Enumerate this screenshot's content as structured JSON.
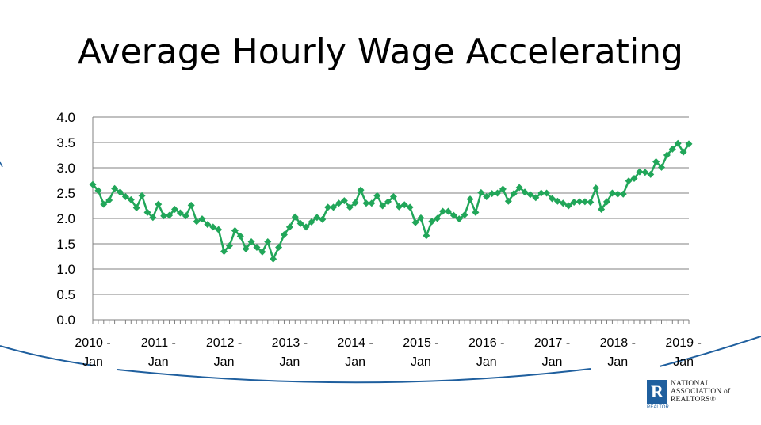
{
  "slide": {
    "title": "Average Hourly Wage Accelerating"
  },
  "logo": {
    "mark": "R",
    "sub": "REALTOR",
    "lines": [
      "NATIONAL",
      "ASSOCIATION of",
      "REALTORS®"
    ]
  },
  "colors": {
    "series": "#21a659",
    "grid": "#808080",
    "curve": "#1f5f9e"
  },
  "chart_data": {
    "type": "line",
    "title": "Average Hourly Wage Accelerating",
    "xlabel": "",
    "ylabel": "",
    "ylim": [
      0,
      4.0
    ],
    "yticks": [
      "0.0",
      "0.5",
      "1.0",
      "1.5",
      "2.0",
      "2.5",
      "3.0",
      "3.5",
      "4.0"
    ],
    "xtick_labels": [
      [
        "2010 -",
        "Jan"
      ],
      [
        "2011 -",
        "Jan"
      ],
      [
        "2012 -",
        "Jan"
      ],
      [
        "2013 -",
        "Jan"
      ],
      [
        "2014 -",
        "Jan"
      ],
      [
        "2015 -",
        "Jan"
      ],
      [
        "2016 -",
        "Jan"
      ],
      [
        "2017 -",
        "Jan"
      ],
      [
        "2018 -",
        "Jan"
      ],
      [
        "2019 -",
        "Jan"
      ]
    ],
    "grid": true,
    "legend": "none",
    "marker": "diamond",
    "start": "2010-01",
    "series": [
      {
        "values": [
          2.67,
          2.55,
          2.28,
          2.36,
          2.59,
          2.52,
          2.43,
          2.37,
          2.21,
          2.45,
          2.12,
          2.02,
          2.28,
          2.05,
          2.06,
          2.18,
          2.11,
          2.05,
          2.26,
          1.94,
          1.99,
          1.88,
          1.83,
          1.78,
          1.35,
          1.46,
          1.76,
          1.65,
          1.4,
          1.54,
          1.43,
          1.34,
          1.54,
          1.2,
          1.43,
          1.68,
          1.83,
          2.03,
          1.9,
          1.83,
          1.93,
          2.02,
          1.98,
          2.22,
          2.22,
          2.3,
          2.35,
          2.22,
          2.31,
          2.56,
          2.3,
          2.3,
          2.45,
          2.25,
          2.33,
          2.43,
          2.23,
          2.27,
          2.22,
          1.92,
          2.01,
          1.66,
          1.94,
          2.0,
          2.14,
          2.14,
          2.06,
          1.99,
          2.07,
          2.38,
          2.12,
          2.51,
          2.43,
          2.49,
          2.5,
          2.58,
          2.34,
          2.49,
          2.61,
          2.52,
          2.47,
          2.41,
          2.5,
          2.5,
          2.39,
          2.34,
          2.3,
          2.25,
          2.32,
          2.33,
          2.33,
          2.32,
          2.6,
          2.18,
          2.33,
          2.5,
          2.48,
          2.48,
          2.74,
          2.79,
          2.92,
          2.91,
          2.87,
          3.12,
          3.01,
          3.25,
          3.37,
          3.48,
          3.31,
          3.47
        ]
      }
    ]
  }
}
